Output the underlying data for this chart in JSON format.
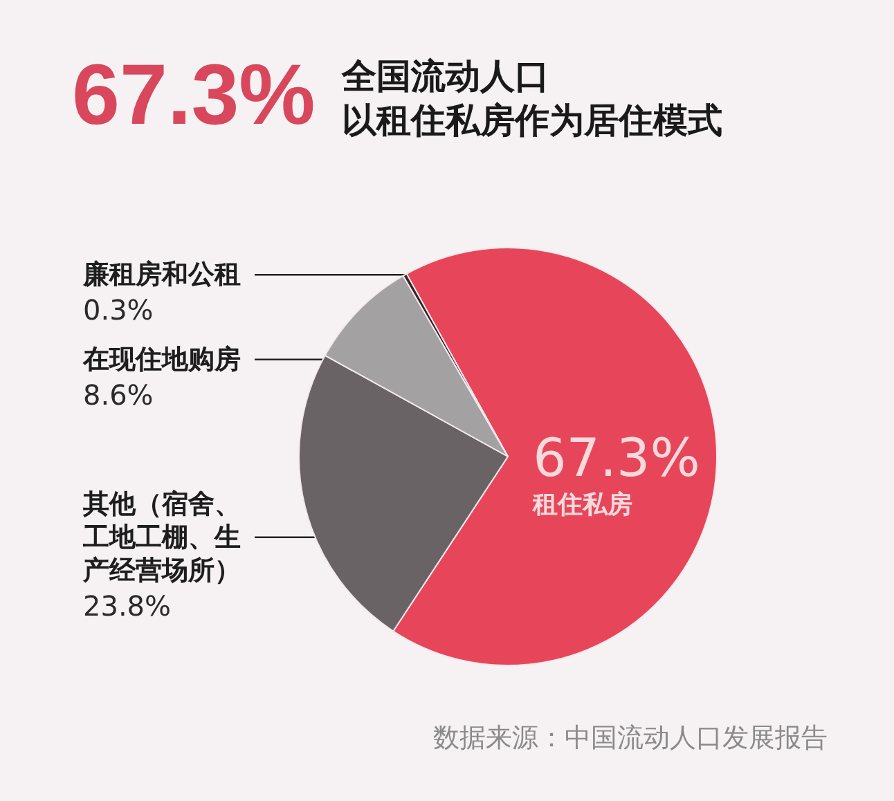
{
  "chart_data": {
    "type": "pie",
    "title": "67.3%",
    "subtitle": "全国流动人口以租住私房作为居住模式",
    "categories": [
      "租住私房",
      "其他（宿舍、工地工棚、生产经营场所）",
      "在现住地购房",
      "廉租房和公租"
    ],
    "values": [
      67.3,
      23.8,
      8.6,
      0.3
    ],
    "colors": [
      "#e7465a",
      "#6a6366",
      "#a4a1a2",
      "#3a2327"
    ],
    "value_labels": [
      "67.3%",
      "23.8%",
      "8.6%",
      "0.3%"
    ],
    "annotations": [
      "数据来源：中国流动人口发展报告"
    ]
  }
}
